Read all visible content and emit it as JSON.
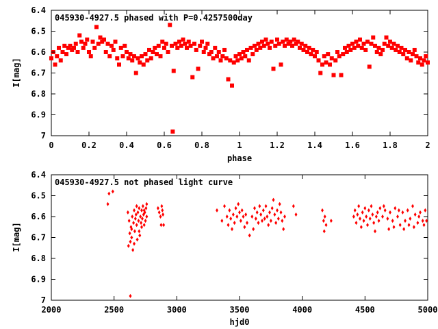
{
  "chart_data": [
    {
      "type": "scatter",
      "title": "045930-4927.5 phased with P=0.4257500day",
      "xlabel": "phase",
      "ylabel": "I[mag]",
      "xlim": [
        0,
        2
      ],
      "ylim": [
        6.4,
        7.0
      ],
      "y_inverted": true,
      "xticks": [
        "0",
        "0.2",
        "0.4",
        "0.6",
        "0.8",
        "1",
        "1.2",
        "1.4",
        "1.6",
        "1.8",
        "2"
      ],
      "yticks": [
        "6.4",
        "6.5",
        "6.6",
        "6.7",
        "6.8",
        "6.9",
        "7"
      ],
      "marker": "filled-square",
      "color": "#ff0000",
      "points": [
        [
          0.0,
          6.63
        ],
        [
          0.01,
          6.6
        ],
        [
          0.02,
          6.66
        ],
        [
          0.03,
          6.62
        ],
        [
          0.04,
          6.58
        ],
        [
          0.05,
          6.64
        ],
        [
          0.06,
          6.6
        ],
        [
          0.07,
          6.57
        ],
        [
          0.08,
          6.61
        ],
        [
          0.09,
          6.58
        ],
        [
          0.1,
          6.57
        ],
        [
          0.11,
          6.59
        ],
        [
          0.12,
          6.58
        ],
        [
          0.13,
          6.56
        ],
        [
          0.14,
          6.6
        ],
        [
          0.15,
          6.52
        ],
        [
          0.16,
          6.55
        ],
        [
          0.17,
          6.58
        ],
        [
          0.18,
          6.56
        ],
        [
          0.19,
          6.54
        ],
        [
          0.2,
          6.6
        ],
        [
          0.21,
          6.62
        ],
        [
          0.22,
          6.55
        ],
        [
          0.23,
          6.58
        ],
        [
          0.24,
          6.48
        ],
        [
          0.25,
          6.56
        ],
        [
          0.26,
          6.53
        ],
        [
          0.27,
          6.55
        ],
        [
          0.28,
          6.54
        ],
        [
          0.29,
          6.6
        ],
        [
          0.3,
          6.56
        ],
        [
          0.31,
          6.62
        ],
        [
          0.32,
          6.57
        ],
        [
          0.33,
          6.59
        ],
        [
          0.34,
          6.55
        ],
        [
          0.35,
          6.63
        ],
        [
          0.36,
          6.66
        ],
        [
          0.37,
          6.58
        ],
        [
          0.38,
          6.62
        ],
        [
          0.39,
          6.57
        ],
        [
          0.4,
          6.6
        ],
        [
          0.41,
          6.63
        ],
        [
          0.42,
          6.61
        ],
        [
          0.43,
          6.64
        ],
        [
          0.44,
          6.62
        ],
        [
          0.45,
          6.7
        ],
        [
          0.46,
          6.63
        ],
        [
          0.47,
          6.65
        ],
        [
          0.48,
          6.62
        ],
        [
          0.49,
          6.66
        ],
        [
          0.5,
          6.61
        ],
        [
          0.51,
          6.64
        ],
        [
          0.52,
          6.59
        ],
        [
          0.53,
          6.63
        ],
        [
          0.54,
          6.6
        ],
        [
          0.55,
          6.58
        ],
        [
          0.56,
          6.61
        ],
        [
          0.57,
          6.57
        ],
        [
          0.58,
          6.62
        ],
        [
          0.59,
          6.55
        ],
        [
          0.6,
          6.58
        ],
        [
          0.61,
          6.56
        ],
        [
          0.62,
          6.6
        ],
        [
          0.63,
          6.47
        ],
        [
          0.64,
          6.57
        ],
        [
          0.645,
          6.98
        ],
        [
          0.65,
          6.69
        ],
        [
          0.66,
          6.56
        ],
        [
          0.67,
          6.58
        ],
        [
          0.68,
          6.55
        ],
        [
          0.69,
          6.57
        ],
        [
          0.7,
          6.54
        ],
        [
          0.71,
          6.56
        ],
        [
          0.72,
          6.58
        ],
        [
          0.73,
          6.55
        ],
        [
          0.74,
          6.57
        ],
        [
          0.75,
          6.72
        ],
        [
          0.76,
          6.56
        ],
        [
          0.77,
          6.59
        ],
        [
          0.78,
          6.68
        ],
        [
          0.79,
          6.57
        ],
        [
          0.8,
          6.55
        ],
        [
          0.81,
          6.6
        ],
        [
          0.82,
          6.58
        ],
        [
          0.83,
          6.56
        ],
        [
          0.84,
          6.61
        ],
        [
          0.85,
          6.6
        ],
        [
          0.86,
          6.63
        ],
        [
          0.87,
          6.58
        ],
        [
          0.88,
          6.62
        ],
        [
          0.89,
          6.6
        ],
        [
          0.9,
          6.64
        ],
        [
          0.91,
          6.62
        ],
        [
          0.92,
          6.59
        ],
        [
          0.93,
          6.63
        ],
        [
          0.94,
          6.73
        ],
        [
          0.95,
          6.64
        ],
        [
          0.96,
          6.76
        ],
        [
          0.97,
          6.65
        ],
        [
          0.98,
          6.62
        ],
        [
          0.99,
          6.64
        ],
        [
          1.0,
          6.61
        ],
        [
          1.01,
          6.63
        ],
        [
          1.02,
          6.6
        ],
        [
          1.03,
          6.62
        ],
        [
          1.04,
          6.59
        ],
        [
          1.05,
          6.64
        ],
        [
          1.06,
          6.58
        ],
        [
          1.07,
          6.61
        ],
        [
          1.08,
          6.57
        ],
        [
          1.09,
          6.59
        ],
        [
          1.1,
          6.56
        ],
        [
          1.11,
          6.58
        ],
        [
          1.12,
          6.55
        ],
        [
          1.13,
          6.57
        ],
        [
          1.14,
          6.54
        ],
        [
          1.15,
          6.56
        ],
        [
          1.16,
          6.58
        ],
        [
          1.17,
          6.55
        ],
        [
          1.18,
          6.68
        ],
        [
          1.19,
          6.57
        ],
        [
          1.2,
          6.54
        ],
        [
          1.21,
          6.56
        ],
        [
          1.22,
          6.66
        ],
        [
          1.23,
          6.55
        ],
        [
          1.24,
          6.57
        ],
        [
          1.25,
          6.54
        ],
        [
          1.26,
          6.56
        ],
        [
          1.27,
          6.55
        ],
        [
          1.28,
          6.57
        ],
        [
          1.29,
          6.54
        ],
        [
          1.3,
          6.56
        ],
        [
          1.31,
          6.55
        ],
        [
          1.32,
          6.58
        ],
        [
          1.33,
          6.56
        ],
        [
          1.34,
          6.59
        ],
        [
          1.35,
          6.57
        ],
        [
          1.36,
          6.6
        ],
        [
          1.37,
          6.58
        ],
        [
          1.38,
          6.61
        ],
        [
          1.39,
          6.59
        ],
        [
          1.4,
          6.62
        ],
        [
          1.41,
          6.6
        ],
        [
          1.42,
          6.64
        ],
        [
          1.43,
          6.7
        ],
        [
          1.44,
          6.66
        ],
        [
          1.45,
          6.62
        ],
        [
          1.46,
          6.65
        ],
        [
          1.47,
          6.61
        ],
        [
          1.48,
          6.66
        ],
        [
          1.49,
          6.63
        ],
        [
          1.5,
          6.71
        ],
        [
          1.51,
          6.64
        ],
        [
          1.52,
          6.6
        ],
        [
          1.53,
          6.62
        ],
        [
          1.54,
          6.71
        ],
        [
          1.55,
          6.61
        ],
        [
          1.56,
          6.58
        ],
        [
          1.57,
          6.6
        ],
        [
          1.58,
          6.57
        ],
        [
          1.59,
          6.59
        ],
        [
          1.6,
          6.56
        ],
        [
          1.61,
          6.58
        ],
        [
          1.62,
          6.55
        ],
        [
          1.63,
          6.57
        ],
        [
          1.64,
          6.54
        ],
        [
          1.65,
          6.58
        ],
        [
          1.66,
          6.56
        ],
        [
          1.67,
          6.59
        ],
        [
          1.68,
          6.55
        ],
        [
          1.69,
          6.67
        ],
        [
          1.7,
          6.56
        ],
        [
          1.71,
          6.53
        ],
        [
          1.72,
          6.57
        ],
        [
          1.73,
          6.6
        ],
        [
          1.74,
          6.58
        ],
        [
          1.75,
          6.61
        ],
        [
          1.76,
          6.59
        ],
        [
          1.77,
          6.56
        ],
        [
          1.78,
          6.53
        ],
        [
          1.79,
          6.57
        ],
        [
          1.8,
          6.55
        ],
        [
          1.81,
          6.58
        ],
        [
          1.82,
          6.56
        ],
        [
          1.83,
          6.59
        ],
        [
          1.84,
          6.57
        ],
        [
          1.85,
          6.6
        ],
        [
          1.86,
          6.58
        ],
        [
          1.87,
          6.61
        ],
        [
          1.88,
          6.59
        ],
        [
          1.89,
          6.63
        ],
        [
          1.9,
          6.6
        ],
        [
          1.91,
          6.64
        ],
        [
          1.92,
          6.61
        ],
        [
          1.93,
          6.59
        ],
        [
          1.94,
          6.62
        ],
        [
          1.95,
          6.65
        ],
        [
          1.96,
          6.63
        ],
        [
          1.97,
          6.66
        ],
        [
          1.98,
          6.64
        ],
        [
          1.99,
          6.62
        ],
        [
          2.0,
          6.65
        ]
      ]
    },
    {
      "type": "scatter",
      "title": "045930-4927.5 not phased light curve",
      "xlabel": "hjd0",
      "ylabel": "I[mag]",
      "xlim": [
        2000,
        5000
      ],
      "ylim": [
        6.4,
        7.0
      ],
      "y_inverted": true,
      "xticks": [
        "2000",
        "2500",
        "3000",
        "3500",
        "4000",
        "4500",
        "5000"
      ],
      "yticks": [
        "6.4",
        "6.5",
        "6.6",
        "6.7",
        "6.8",
        "6.9",
        "7"
      ],
      "marker": "filled-diamond",
      "color": "#ff0000",
      "points": [
        [
          2450,
          6.54
        ],
        [
          2460,
          6.49
        ],
        [
          2490,
          6.48
        ],
        [
          2630,
          6.98
        ],
        [
          2610,
          6.58
        ],
        [
          2620,
          6.62
        ],
        [
          2625,
          6.68
        ],
        [
          2630,
          6.72
        ],
        [
          2635,
          6.65
        ],
        [
          2640,
          6.7
        ],
        [
          2645,
          6.6
        ],
        [
          2650,
          6.76
        ],
        [
          2655,
          6.63
        ],
        [
          2660,
          6.57
        ],
        [
          2665,
          6.67
        ],
        [
          2670,
          6.61
        ],
        [
          2675,
          6.59
        ],
        [
          2680,
          6.64
        ],
        [
          2685,
          6.71
        ],
        [
          2690,
          6.58
        ],
        [
          2695,
          6.62
        ],
        [
          2700,
          6.56
        ],
        [
          2705,
          6.69
        ],
        [
          2710,
          6.6
        ],
        [
          2715,
          6.63
        ],
        [
          2720,
          6.57
        ],
        [
          2725,
          6.61
        ],
        [
          2730,
          6.55
        ],
        [
          2735,
          6.59
        ],
        [
          2740,
          6.64
        ],
        [
          2745,
          6.58
        ],
        [
          2750,
          6.62
        ],
        [
          2755,
          6.56
        ],
        [
          2760,
          6.6
        ],
        [
          2615,
          6.74
        ],
        [
          2640,
          6.66
        ],
        [
          2660,
          6.73
        ],
        [
          2680,
          6.55
        ],
        [
          2700,
          6.67
        ],
        [
          2720,
          6.65
        ],
        [
          2740,
          6.57
        ],
        [
          2760,
          6.54
        ],
        [
          2850,
          6.56
        ],
        [
          2860,
          6.58
        ],
        [
          2870,
          6.6
        ],
        [
          2875,
          6.64
        ],
        [
          2880,
          6.55
        ],
        [
          2885,
          6.57
        ],
        [
          2890,
          6.59
        ],
        [
          2895,
          6.64
        ],
        [
          3320,
          6.57
        ],
        [
          3360,
          6.62
        ],
        [
          3380,
          6.55
        ],
        [
          3400,
          6.6
        ],
        [
          3410,
          6.64
        ],
        [
          3420,
          6.57
        ],
        [
          3430,
          6.61
        ],
        [
          3440,
          6.66
        ],
        [
          3450,
          6.59
        ],
        [
          3460,
          6.63
        ],
        [
          3470,
          6.56
        ],
        [
          3480,
          6.6
        ],
        [
          3490,
          6.54
        ],
        [
          3500,
          6.58
        ],
        [
          3510,
          6.62
        ],
        [
          3520,
          6.57
        ],
        [
          3530,
          6.6
        ],
        [
          3540,
          6.65
        ],
        [
          3550,
          6.59
        ],
        [
          3560,
          6.63
        ],
        [
          3580,
          6.69
        ],
        [
          3600,
          6.6
        ],
        [
          3610,
          6.66
        ],
        [
          3620,
          6.56
        ],
        [
          3630,
          6.61
        ],
        [
          3640,
          6.58
        ],
        [
          3650,
          6.63
        ],
        [
          3660,
          6.55
        ],
        [
          3670,
          6.59
        ],
        [
          3680,
          6.62
        ],
        [
          3690,
          6.57
        ],
        [
          3700,
          6.61
        ],
        [
          3710,
          6.55
        ],
        [
          3720,
          6.6
        ],
        [
          3730,
          6.64
        ],
        [
          3740,
          6.58
        ],
        [
          3750,
          6.62
        ],
        [
          3760,
          6.56
        ],
        [
          3770,
          6.52
        ],
        [
          3780,
          6.59
        ],
        [
          3790,
          6.63
        ],
        [
          3800,
          6.57
        ],
        [
          3810,
          6.61
        ],
        [
          3820,
          6.54
        ],
        [
          3830,
          6.58
        ],
        [
          3840,
          6.62
        ],
        [
          3850,
          6.66
        ],
        [
          3860,
          6.6
        ],
        [
          3930,
          6.55
        ],
        [
          3950,
          6.59
        ],
        [
          4160,
          6.57
        ],
        [
          4170,
          6.62
        ],
        [
          4175,
          6.67
        ],
        [
          4180,
          6.6
        ],
        [
          4190,
          6.64
        ],
        [
          4230,
          6.62
        ],
        [
          4410,
          6.6
        ],
        [
          4420,
          6.57
        ],
        [
          4430,
          6.63
        ],
        [
          4440,
          6.59
        ],
        [
          4450,
          6.55
        ],
        [
          4460,
          6.61
        ],
        [
          4470,
          6.65
        ],
        [
          4480,
          6.58
        ],
        [
          4490,
          6.62
        ],
        [
          4500,
          6.56
        ],
        [
          4510,
          6.6
        ],
        [
          4520,
          6.64
        ],
        [
          4530,
          6.57
        ],
        [
          4540,
          6.61
        ],
        [
          4550,
          6.55
        ],
        [
          4560,
          6.59
        ],
        [
          4570,
          6.63
        ],
        [
          4580,
          6.67
        ],
        [
          4590,
          6.6
        ],
        [
          4600,
          6.58
        ],
        [
          4610,
          6.62
        ],
        [
          4620,
          6.56
        ],
        [
          4640,
          6.6
        ],
        [
          4660,
          6.57
        ],
        [
          4680,
          6.61
        ],
        [
          4700,
          6.58
        ],
        [
          4720,
          6.62
        ],
        [
          4740,
          6.56
        ],
        [
          4760,
          6.6
        ],
        [
          4780,
          6.64
        ],
        [
          4800,
          6.58
        ],
        [
          4820,
          6.62
        ],
        [
          4840,
          6.57
        ],
        [
          4860,
          6.61
        ],
        [
          4880,
          6.55
        ],
        [
          4900,
          6.59
        ],
        [
          4920,
          6.63
        ],
        [
          4940,
          6.58
        ],
        [
          4960,
          6.62
        ],
        [
          4980,
          6.57
        ],
        [
          4650,
          6.55
        ],
        [
          4690,
          6.66
        ],
        [
          4730,
          6.65
        ],
        [
          4770,
          6.57
        ],
        [
          4810,
          6.66
        ],
        [
          4850,
          6.64
        ],
        [
          4890,
          6.65
        ],
        [
          4930,
          6.6
        ],
        [
          4970,
          6.64
        ],
        [
          4990,
          6.62
        ]
      ]
    }
  ]
}
